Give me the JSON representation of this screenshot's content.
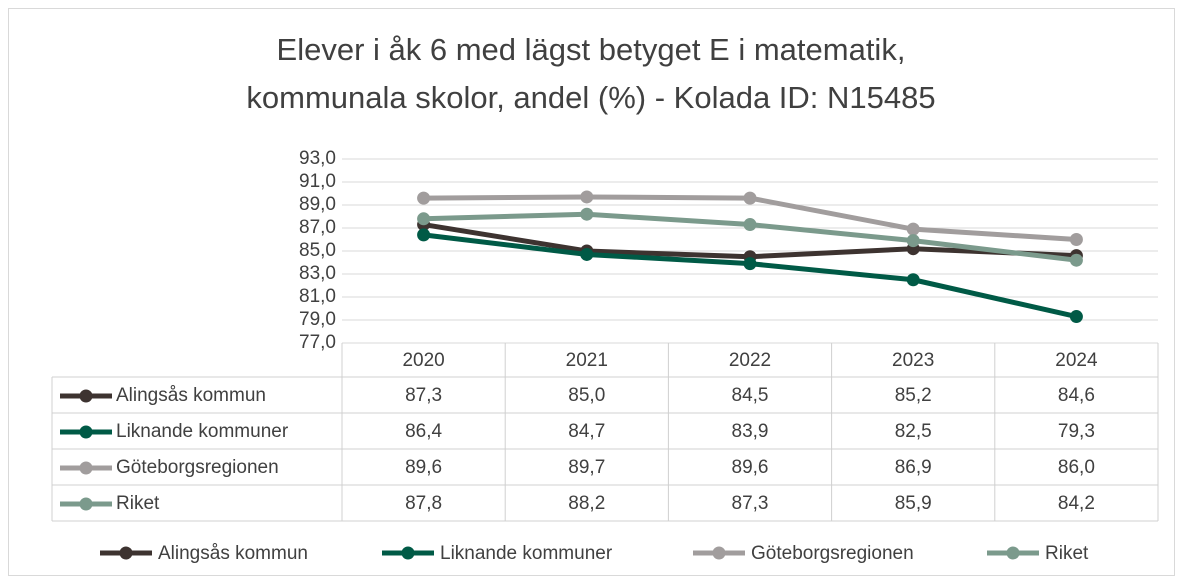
{
  "chart_data": {
    "type": "line",
    "title": [
      "Elever i åk 6 med lägst betyget E i matematik,",
      "kommunala skolor, andel (%) - Kolada ID: N15485"
    ],
    "categories": [
      "2020",
      "2021",
      "2022",
      "2023",
      "2024"
    ],
    "series": [
      {
        "name": "Alingsås kommun",
        "color": "#3d3330",
        "values": [
          87.3,
          85.0,
          84.5,
          85.2,
          84.6
        ],
        "value_labels": [
          "87,3",
          "85,0",
          "84,5",
          "85,2",
          "84,6"
        ]
      },
      {
        "name": "Liknande kommuner",
        "color": "#005a46",
        "values": [
          86.4,
          84.7,
          83.9,
          82.5,
          79.3
        ],
        "value_labels": [
          "86,4",
          "84,7",
          "83,9",
          "82,5",
          "79,3"
        ]
      },
      {
        "name": "Göteborgsregionen",
        "color": "#a19d9d",
        "values": [
          89.6,
          89.7,
          89.6,
          86.9,
          86.0
        ],
        "value_labels": [
          "89,6",
          "89,7",
          "89,6",
          "86,9",
          "86,0"
        ]
      },
      {
        "name": "Riket",
        "color": "#7b9a8c",
        "values": [
          87.8,
          88.2,
          87.3,
          85.9,
          84.2
        ],
        "value_labels": [
          "87,8",
          "88,2",
          "87,3",
          "85,9",
          "84,2"
        ]
      }
    ],
    "ylim": [
      77,
      93
    ],
    "yticks": [
      {
        "value": 77,
        "label": "77,0"
      },
      {
        "value": 79,
        "label": "79,0"
      },
      {
        "value": 81,
        "label": "81,0"
      },
      {
        "value": 83,
        "label": "83,0"
      },
      {
        "value": 85,
        "label": "85,0"
      },
      {
        "value": 87,
        "label": "87,0"
      },
      {
        "value": 89,
        "label": "89,0"
      },
      {
        "value": 91,
        "label": "91,0"
      },
      {
        "value": 93,
        "label": "93,0"
      }
    ],
    "grid": true,
    "legend": "bottom"
  }
}
